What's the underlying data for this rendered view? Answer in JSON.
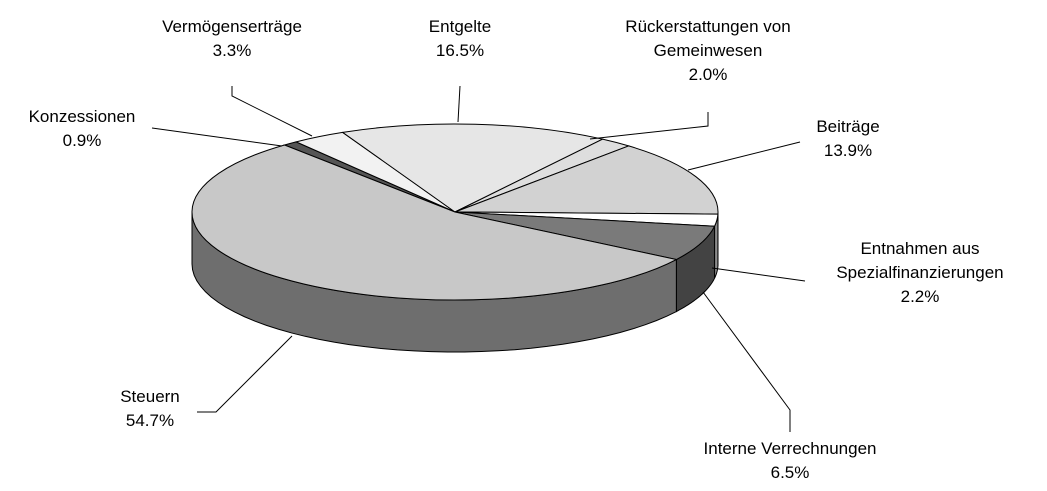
{
  "chart_data": {
    "type": "pie",
    "categories": [
      "Konzessionen",
      "Vermögenserträge",
      "Entgelte",
      "Rückerstattungen von Gemeinwesen",
      "Beiträge",
      "Entnahmen aus Spezialfinanzierungen",
      "Interne Verrechnungen",
      "Steuern"
    ],
    "values": [
      0.9,
      3.3,
      16.5,
      2.0,
      13.9,
      2.2,
      6.5,
      54.7
    ],
    "value_labels": [
      "0.9%",
      "3.3%",
      "16.5%",
      "2.0%",
      "13.9%",
      "2.2%",
      "6.5%",
      "54.7%"
    ],
    "colors": [
      "#555555",
      "#f2f2f2",
      "#e6e6e6",
      "#dedede",
      "#d2d2d2",
      "#ffffff",
      "#7a7a7a",
      "#c8c8c8"
    ]
  }
}
